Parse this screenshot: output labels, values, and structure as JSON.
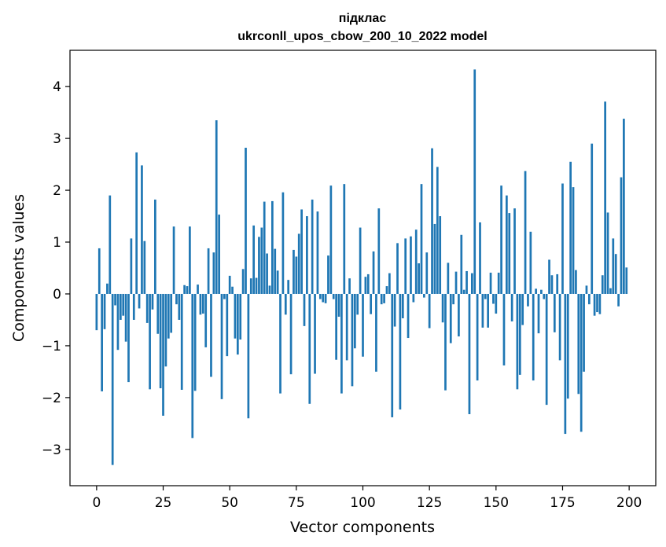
{
  "chart_data": {
    "type": "bar",
    "title": "підклас",
    "subtitle": "ukrconll_upos_cbow_200_10_2022 model",
    "xlabel": "Vector components",
    "ylabel": "Components values",
    "xlim": [
      -10,
      210
    ],
    "ylim": [
      -3.7,
      4.7
    ],
    "xticks": [
      0,
      25,
      50,
      75,
      100,
      125,
      150,
      175,
      200
    ],
    "xtick_labels": [
      "0",
      "25",
      "50",
      "75",
      "100",
      "125",
      "150",
      "175",
      "200"
    ],
    "yticks": [
      -3,
      -2,
      -1,
      0,
      1,
      2,
      3,
      4
    ],
    "ytick_labels": [
      "−3",
      "−2",
      "−1",
      "0",
      "1",
      "2",
      "3",
      "4"
    ],
    "bar_color": "#1f77b4",
    "grid": false,
    "values": [
      -0.7,
      0.88,
      -1.88,
      -0.68,
      0.2,
      1.9,
      -3.3,
      -0.22,
      -1.08,
      -0.5,
      -0.42,
      -0.92,
      -1.7,
      1.07,
      -0.5,
      2.73,
      -0.28,
      2.48,
      1.02,
      -0.56,
      -1.84,
      -0.3,
      1.82,
      -0.77,
      -1.82,
      -2.35,
      -1.4,
      -0.86,
      -0.75,
      1.3,
      -0.2,
      -0.5,
      -1.85,
      0.17,
      0.15,
      1.3,
      -2.78,
      -1.87,
      0.18,
      -0.4,
      -0.38,
      -1.03,
      0.88,
      -1.6,
      0.8,
      3.35,
      1.53,
      -2.03,
      -0.1,
      -1.2,
      0.35,
      0.14,
      -0.86,
      -1.17,
      -0.88,
      0.48,
      2.82,
      -2.4,
      0.3,
      1.32,
      0.31,
      1.1,
      1.28,
      1.78,
      0.78,
      0.16,
      1.79,
      0.87,
      0.45,
      -1.92,
      1.96,
      -0.4,
      0.27,
      -1.55,
      0.85,
      0.72,
      1.16,
      1.63,
      -0.62,
      1.5,
      -2.12,
      1.82,
      -1.54,
      1.59,
      -0.1,
      -0.16,
      -0.18,
      0.74,
      2.09,
      -0.1,
      -1.27,
      -0.44,
      -1.92,
      2.12,
      -1.28,
      0.3,
      -1.78,
      -1.05,
      -0.4,
      1.28,
      -1.21,
      0.33,
      0.38,
      -0.39,
      0.82,
      -1.5,
      1.65,
      -0.2,
      -0.18,
      0.15,
      0.4,
      -2.38,
      -0.63,
      0.98,
      -2.23,
      -0.47,
      1.07,
      -0.85,
      1.11,
      -0.16,
      1.24,
      0.59,
      2.12,
      -0.07,
      0.8,
      -0.66,
      2.81,
      1.35,
      2.45,
      1.5,
      -0.55,
      -1.86,
      0.6,
      -0.95,
      -0.2,
      0.43,
      -0.82,
      1.14,
      0.08,
      0.44,
      -2.32,
      0.4,
      4.33,
      -1.67,
      1.38,
      -0.65,
      -0.1,
      -0.65,
      0.41,
      -0.19,
      -0.38,
      0.41,
      2.09,
      -1.38,
      1.9,
      1.56,
      -0.53,
      1.65,
      -1.84,
      -1.56,
      -0.6,
      2.37,
      -0.24,
      1.2,
      -1.67,
      0.1,
      -0.76,
      0.08,
      -0.1,
      -2.14,
      0.66,
      0.36,
      -0.74,
      0.38,
      -1.28,
      2.13,
      -2.7,
      -2.02,
      2.55,
      2.06,
      0.46,
      -1.93,
      -2.66,
      -1.5,
      0.16,
      -0.2,
      2.9,
      -0.42,
      -0.35,
      -0.39,
      0.36,
      3.71,
      1.57,
      0.11,
      1.07,
      0.77,
      -0.24,
      2.25,
      3.38,
      0.51
    ]
  }
}
